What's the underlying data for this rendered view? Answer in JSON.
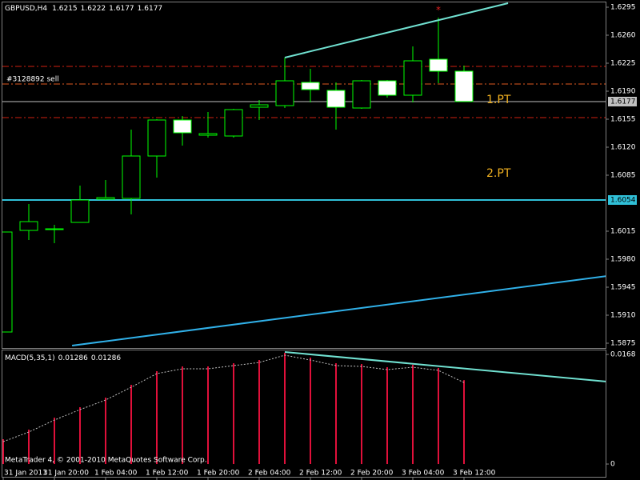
{
  "chart_data": [
    {
      "type": "candlestick",
      "title": "GBPUSD,H4",
      "categories": [
        "31 Jan 2011",
        null,
        "31 Jan 20:00",
        null,
        "1 Feb 04:00",
        null,
        "1 Feb 12:00",
        null,
        "1 Feb 20:00",
        null,
        "2 Feb 04:00",
        null,
        "2 Feb 12:00",
        null,
        "2 Feb 20:00",
        null,
        "3 Feb 04:00",
        null,
        "3 Feb 12:00"
      ],
      "open": [
        1.5889,
        1.6016,
        1.6017,
        1.6026,
        1.6055,
        1.6056,
        1.6109,
        1.6154,
        1.6135,
        1.6134,
        1.617,
        1.6172,
        1.6201,
        1.6191,
        1.6169,
        1.6203,
        1.6185,
        1.623,
        1.6215
      ],
      "high": [
        1.6014,
        1.6049,
        1.6023,
        1.6072,
        1.6079,
        1.6142,
        1.6155,
        1.6159,
        1.6164,
        1.6168,
        1.6179,
        1.6232,
        1.6218,
        1.6201,
        1.6204,
        1.6204,
        1.6246,
        1.6282,
        1.6222
      ],
      "low": [
        1.5889,
        1.6004,
        1.6,
        1.6026,
        1.6054,
        1.6036,
        1.6082,
        1.6122,
        1.6132,
        1.6132,
        1.6154,
        1.6169,
        1.6176,
        1.6142,
        1.6168,
        1.6182,
        1.6176,
        1.62,
        1.6177
      ],
      "close": [
        1.6014,
        1.6027,
        1.6018,
        1.6054,
        1.6057,
        1.6109,
        1.6154,
        1.6138,
        1.6137,
        1.6167,
        1.6173,
        1.6203,
        1.6192,
        1.617,
        1.6203,
        1.6185,
        1.6228,
        1.6215,
        1.6177
      ],
      "up_color": "#000000",
      "down_color": "#ffffff",
      "outline_color": "#00ff00",
      "ylim": [
        1.5869,
        1.6302
      ],
      "yticks": [
        1.6295,
        {
          "value": 1.626,
          "label": "1.6260"
        },
        1.6225,
        {
          "value": 1.619,
          "label": "1.6190"
        },
        1.6155,
        {
          "value": 1.612,
          "label": "1.6120"
        },
        1.6085,
        1.6015,
        {
          "value": 1.598,
          "label": "1.5980"
        },
        1.5945,
        {
          "value": 1.591,
          "label": "1.5910"
        },
        1.5875
      ],
      "hlines": [
        {
          "value": 1.6221,
          "color": "#d02010",
          "style": "dashdot"
        },
        {
          "value": 1.6199,
          "color": "#e05a20",
          "style": "dashdot",
          "text": "#3128892 sell"
        },
        {
          "value": 1.6157,
          "color": "#d02010",
          "style": "dashdot"
        },
        {
          "value": 1.6177,
          "color": "#c0c0c0",
          "style": "solid",
          "tag": true
        },
        {
          "value": 1.6054,
          "color": "#30c0d8",
          "style": "solid",
          "tag": true
        }
      ],
      "trendlines": [
        {
          "x": [
            11,
            19.72
          ],
          "y": [
            1.6232,
            1.63
          ],
          "color": "#70e0d0"
        },
        {
          "x": [
            2.69,
            23.6
          ],
          "y": [
            1.5872,
            1.5959
          ],
          "color": "#30b0e8"
        }
      ],
      "annotations": [
        {
          "text": "1.PT",
          "x": 19.35,
          "y": 1.6179,
          "color": "#f0b020"
        },
        {
          "text": "2.PT",
          "x": 19.35,
          "y": 1.6087,
          "color": "#f0b020"
        },
        {
          "text": "*",
          "x": 17,
          "y": 1.6291,
          "color": "#e02020"
        }
      ]
    },
    {
      "type": "macd",
      "title": "MACD(5,35,1)",
      "values": [
        0.0038,
        0.00527,
        0.00711,
        0.00871,
        0.01018,
        0.01214,
        0.01423,
        0.01496,
        0.01496,
        0.01545,
        0.01594,
        0.01705,
        0.01631,
        0.01545,
        0.01533,
        0.01484,
        0.01521,
        0.01472,
        0.01286
      ],
      "color": "#e0103a",
      "ylim": [
        -0.00208,
        0.01754
      ],
      "yticks": [
        0.0168,
        0
      ],
      "trendlines": [
        {
          "x": [
            11,
            23.6
          ],
          "y": [
            0.01717,
            0.01263
          ],
          "color": "#70e0d0"
        }
      ]
    }
  ],
  "footer": "MetaTrader 4, © 2001-2010 MetaQuotes Software Corp."
}
